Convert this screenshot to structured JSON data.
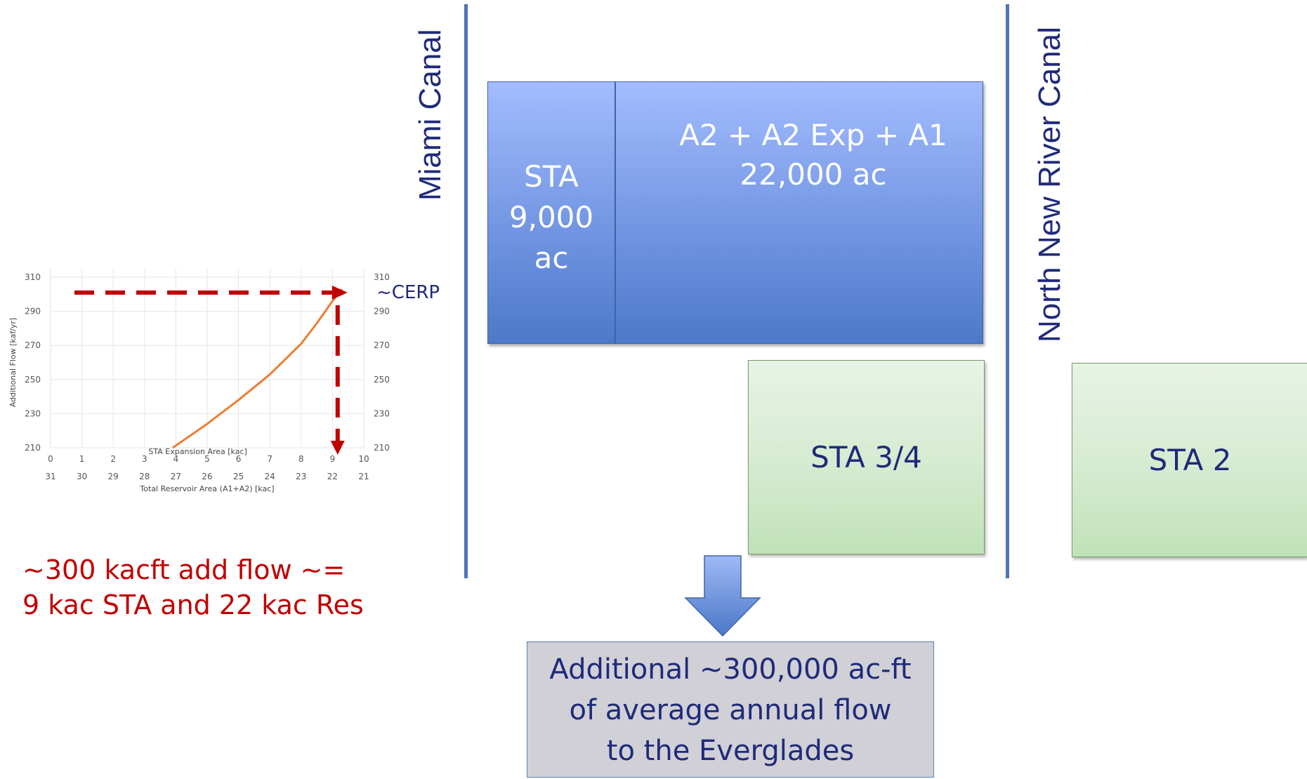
{
  "canals": {
    "miami": "Miami Canal",
    "north_new_river": "North New River Canal"
  },
  "boxes": {
    "sta_name": "STA",
    "sta_area": "9,000",
    "sta_unit": "ac",
    "reservoir_name": "A2 + A2 Exp + A1",
    "reservoir_area": "22,000 ac",
    "sta34": "STA 3/4",
    "sta2": "STA 2"
  },
  "summary": {
    "line1": "Additional ~300,000 ac-ft",
    "line2": "of average annual flow",
    "line3": "to the Everglades"
  },
  "annotation": {
    "line1": "~300 kacft add flow ~=",
    "line2": "9 kac STA and  22 kac Res"
  },
  "chart_data": {
    "type": "line",
    "y_label": "Additional Flow [kaf/yr]",
    "x_label_top": "STA Expansion Area [kac]",
    "x_label_bottom": "Total Reservoir Area (A1+A2) [kac]",
    "y_ticks": [
      210,
      230,
      250,
      270,
      290,
      310
    ],
    "x_ticks_top": [
      0,
      1,
      2,
      3,
      4,
      5,
      6,
      7,
      8,
      9,
      10
    ],
    "x_ticks_bottom": [
      31,
      30,
      29,
      28,
      27,
      26,
      25,
      24,
      23,
      22,
      21
    ],
    "xlim": [
      0,
      10
    ],
    "ylim": [
      210,
      310
    ],
    "series": [
      {
        "color": "#ed7d31",
        "x": [
          3.9,
          5.0,
          6.0,
          7.0,
          8.0,
          8.5,
          9.0,
          9.3
        ],
        "y": [
          210,
          224,
          238,
          253,
          271,
          283,
          296,
          303
        ]
      }
    ],
    "reference_value": 301,
    "reference_x": 9.3,
    "reference_label": "~CERP",
    "reference_color": "#c00000"
  }
}
